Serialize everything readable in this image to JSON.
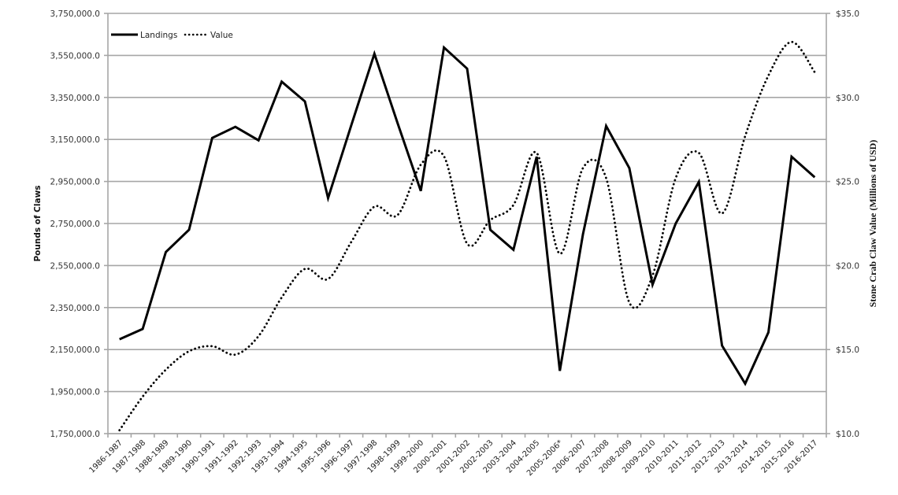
{
  "chart_data": {
    "type": "line",
    "title": "",
    "xlabel": "",
    "ylabel": "Pounds of Claws",
    "ylabel_right": "Stone Crab Claw Value (Millions of USD)",
    "ylim": [
      1750000,
      3750000
    ],
    "ylim_right": [
      10,
      35
    ],
    "grid": true,
    "legend_position": "top-left inside",
    "categories": [
      "1986-1987",
      "1987-1988",
      "1988-1989",
      "1989-1990",
      "1990-1991",
      "1991-1992",
      "1992-1993",
      "1993-1994",
      "1994-1995",
      "1995-1996",
      "1996-1997",
      "1997-1998",
      "1998-1999",
      "1999-2000",
      "2000-2001",
      "2001-2002",
      "2002-2003",
      "2003-2004",
      "2004-2005",
      "2005-2006*",
      "2006-2007",
      "2007-2008",
      "2008-2009",
      "2009-2010",
      "2010-2011",
      "2011-2012",
      "2012-2013",
      "2013-2014",
      "2014-2015",
      "2015-2016",
      "2016-2017"
    ],
    "left_ticks": [
      "1,750,000.0",
      "1,950,000.0",
      "2,150,000.0",
      "2,350,000.0",
      "2,550,000.0",
      "2,750,000.0",
      "2,950,000.0",
      "3,150,000.0",
      "3,350,000.0",
      "3,550,000.0",
      "3,750,000.0"
    ],
    "right_ticks": [
      "$10.0",
      "$15.0",
      "$20.0",
      "$25.0",
      "$30.0",
      "$35.0"
    ],
    "series": [
      {
        "name": "Landings",
        "axis": "left",
        "style": "solid",
        "color": "#000000",
        "values": [
          2199000,
          2248000,
          2614000,
          2720000,
          3157000,
          3210000,
          3146000,
          3425000,
          3331000,
          2871000,
          3217000,
          3558000,
          3228000,
          2905000,
          3588000,
          3487000,
          2720000,
          2625000,
          3068000,
          2049000,
          2700000,
          3214000,
          3014000,
          2459000,
          2750000,
          2948000,
          2169000,
          1988000,
          2232000,
          3068000,
          2970000
        ]
      },
      {
        "name": "Value",
        "axis": "right",
        "style": "dotted",
        "color": "#000000",
        "values": [
          10.2,
          12.2,
          13.8,
          14.9,
          15.2,
          14.7,
          15.8,
          18.1,
          19.8,
          19.2,
          21.4,
          23.5,
          23.0,
          26.0,
          26.5,
          21.3,
          22.7,
          23.6,
          26.7,
          20.7,
          25.8,
          25.2,
          17.8,
          19.4,
          25.2,
          26.7,
          23.1,
          27.7,
          31.3,
          33.3,
          31.5
        ]
      }
    ]
  },
  "legend": {
    "items": [
      {
        "label": "Landings",
        "style": "solid"
      },
      {
        "label": "Value",
        "style": "dotted"
      }
    ]
  },
  "axes": {
    "left_title": "Pounds of Claws",
    "right_title": "Stone Crab Claw Value (Millions of USD)"
  }
}
